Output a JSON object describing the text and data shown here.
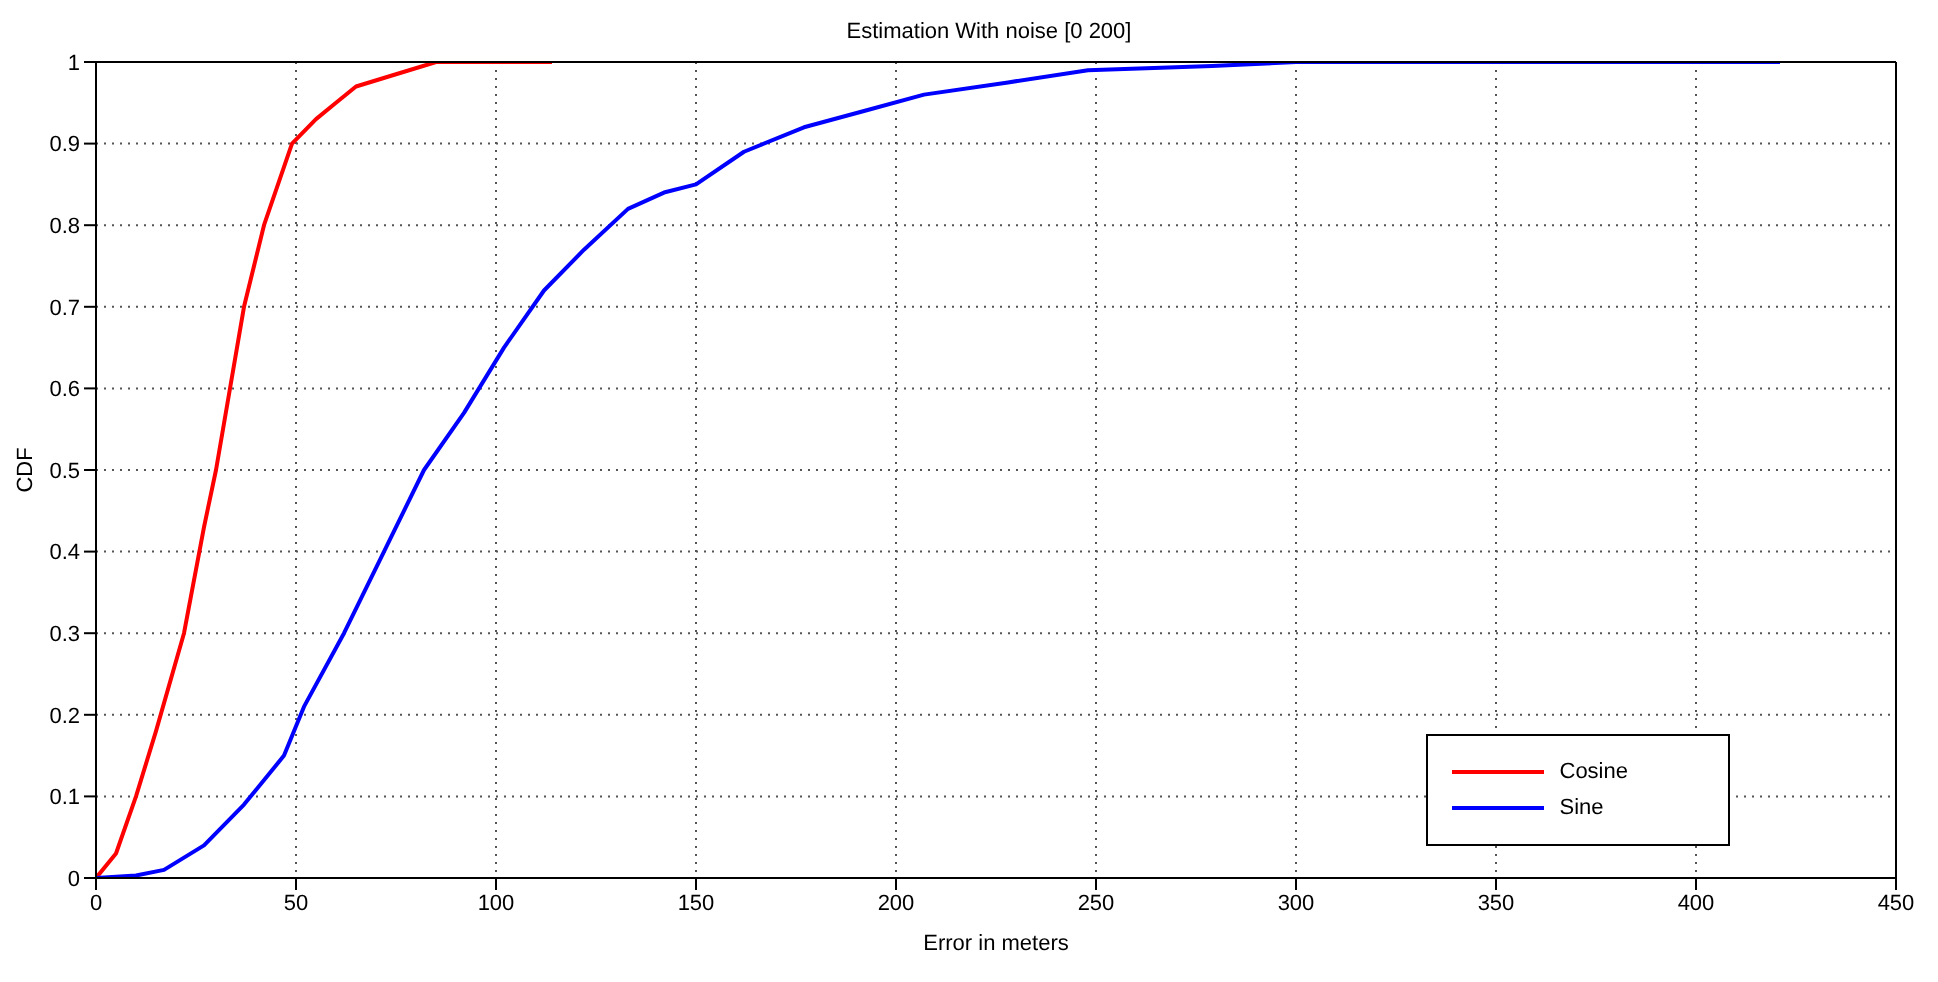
{
  "chart_data": {
    "type": "line",
    "title": "Estimation With noise [0 200]",
    "xlabel": "Error in meters",
    "ylabel": "CDF",
    "xlim": [
      0,
      450
    ],
    "xticks": [
      0,
      50,
      100,
      150,
      200,
      250,
      300,
      350,
      400,
      450
    ],
    "ylim": [
      0,
      1
    ],
    "yticks": [
      0,
      0.1,
      0.2,
      0.3,
      0.4,
      0.5,
      0.6,
      0.7,
      0.8,
      0.9,
      1
    ],
    "grid": true,
    "legend": "bottom right",
    "marker": "none",
    "line_style": "solid",
    "series": [
      {
        "name": "Cosine",
        "color": "#ff0000",
        "x": [
          0,
          5,
          10,
          15,
          22,
          27,
          30,
          37,
          42,
          49,
          55,
          60,
          65,
          75,
          85,
          114
        ],
        "values": [
          0,
          0.03,
          0.1,
          0.18,
          0.3,
          0.43,
          0.5,
          0.7,
          0.8,
          0.9,
          0.93,
          0.95,
          0.97,
          0.985,
          1,
          1
        ]
      },
      {
        "name": "Sine",
        "color": "#0000ff",
        "x": [
          0,
          10,
          17,
          27,
          37,
          47,
          52,
          62,
          72,
          82,
          92,
          102,
          112,
          122,
          133,
          142,
          150,
          162,
          177,
          192,
          207,
          228,
          248,
          279,
          300,
          421
        ],
        "values": [
          0,
          0.003,
          0.01,
          0.04,
          0.09,
          0.15,
          0.21,
          0.3,
          0.4,
          0.5,
          0.57,
          0.65,
          0.72,
          0.77,
          0.82,
          0.84,
          0.85,
          0.89,
          0.92,
          0.94,
          0.96,
          0.975,
          0.99,
          0.995,
          1,
          1
        ]
      }
    ]
  }
}
